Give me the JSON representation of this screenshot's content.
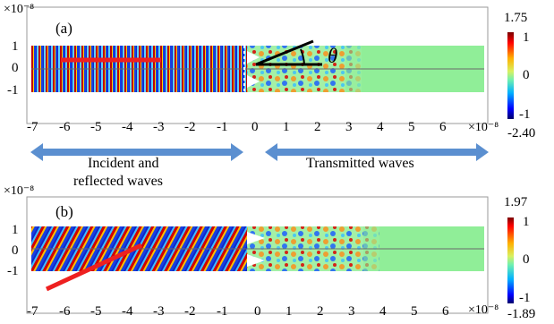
{
  "panel_a": {
    "tag": "(a)",
    "axis_exponent": "×10⁻⁸",
    "y_ticks": [
      "1",
      "0",
      "-1"
    ],
    "x_ticks": [
      "-7",
      "-6",
      "-5",
      "-4",
      "-3",
      "-2",
      "-1",
      "0",
      "1",
      "2",
      "3",
      "4",
      "5",
      "6"
    ],
    "angle_symbol": "θ",
    "colorbar": {
      "max_label": "1.75",
      "top_tick": "1",
      "mid_tick": "0",
      "bottom_tick": "-1",
      "min_label": "-2.40"
    }
  },
  "panel_b": {
    "tag": "(b)",
    "axis_exponent": "×10⁻⁸",
    "y_ticks": [
      "1",
      "0",
      "-1"
    ],
    "x_ticks": [
      "-7",
      "-6",
      "-5",
      "-4",
      "-3",
      "-2",
      "-1",
      "0",
      "1",
      "2",
      "3",
      "4",
      "5",
      "6"
    ],
    "colorbar": {
      "max_label": "1.97",
      "top_tick": "1",
      "mid_tick": "0",
      "bottom_tick": "-1",
      "min_label": "-1.89"
    }
  },
  "annotations": {
    "left_arrow_label_line1": "Incident and",
    "left_arrow_label_line2": "reflected waves",
    "right_arrow_label": "Transmitted waves"
  },
  "colors": {
    "wave_positive": "#c00000",
    "wave_negative": "#1028c8",
    "green_region": "#90ee98",
    "direction_arrow": "#ee2020",
    "region_arrow": "#5b8fd0"
  }
}
